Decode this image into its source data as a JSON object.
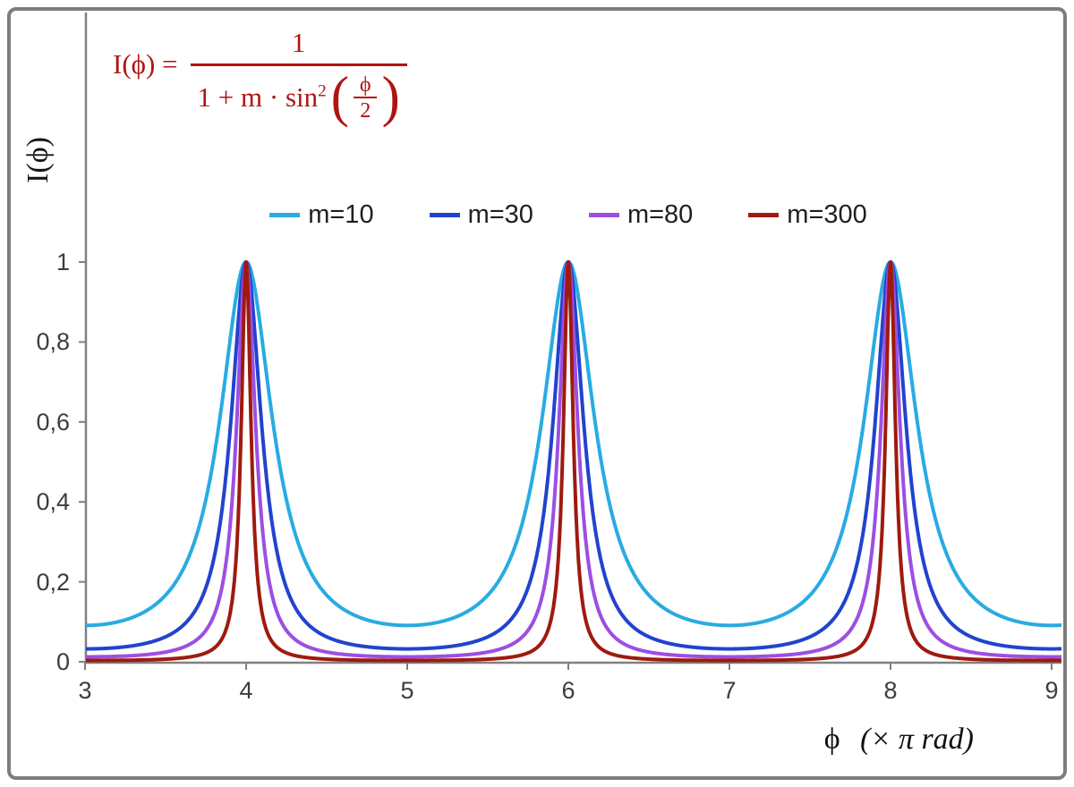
{
  "formula": {
    "lhs": "I(ϕ) =",
    "numerator": "1",
    "den_prefix": "1 + m · sin",
    "den_sup": "2",
    "paren_open": "(",
    "paren_close": ")",
    "inner_numerator": "ϕ",
    "inner_denominator": "2",
    "color": "#b01410"
  },
  "chart_data": {
    "type": "line",
    "title": "",
    "function": "I(phi) = 1 / (1 + m * sin^2(phi/2)), phi expressed in units of pi rad",
    "xlabel_symbol": "ϕ",
    "xlabel_unit": "(× π rad)",
    "ylabel": "I(ϕ)",
    "x_range": [
      3,
      9
    ],
    "y_range": [
      0,
      1
    ],
    "x_tick_values": [
      3,
      4,
      5,
      6,
      7,
      8,
      9
    ],
    "x_ticks": [
      "3",
      "4",
      "5",
      "6",
      "7",
      "8",
      "9"
    ],
    "y_tick_values": [
      0,
      0.2,
      0.4,
      0.6,
      0.8,
      1
    ],
    "y_ticks": [
      "0",
      "0,2",
      "0,4",
      "0,6",
      "0,8",
      "1"
    ],
    "peaks_at_x": [
      4,
      6,
      8
    ],
    "peak_value": 1,
    "grid": false,
    "legend_position": "top-center",
    "axis_color": "#808080",
    "series": [
      {
        "name": "m=10",
        "m": 10,
        "color": "#29abe2"
      },
      {
        "name": "m=30",
        "m": 30,
        "color": "#2143ce"
      },
      {
        "name": "m=80",
        "m": 80,
        "color": "#9c4fe3"
      },
      {
        "name": "m=300",
        "m": 300,
        "color": "#9e1a0f"
      }
    ]
  }
}
